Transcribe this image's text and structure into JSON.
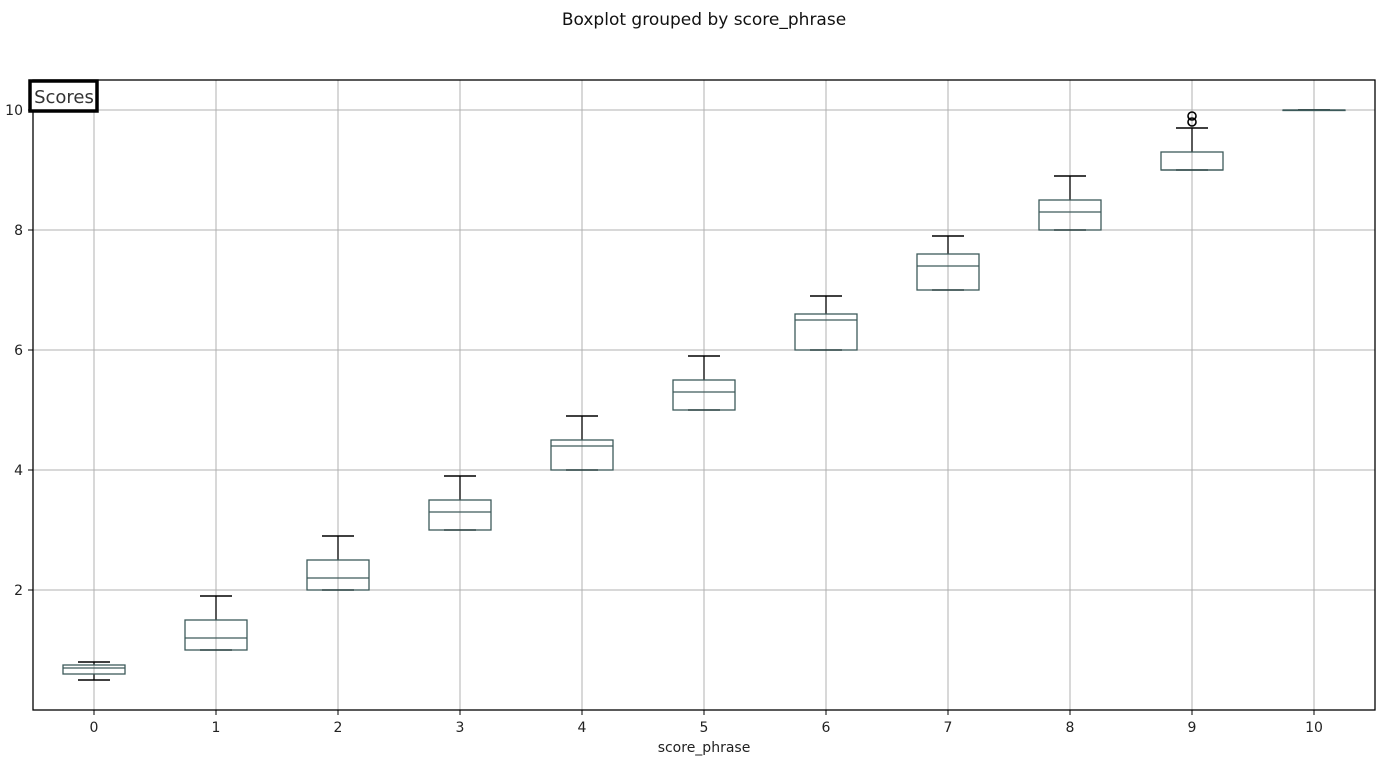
{
  "chart_data": {
    "type": "boxplot",
    "title": "Boxplot grouped by score_phrase",
    "label": "Scores",
    "xlabel": "score_phrase",
    "ylabel": "",
    "categories": [
      "0",
      "1",
      "2",
      "3",
      "4",
      "5",
      "6",
      "7",
      "8",
      "9",
      "10"
    ],
    "boxes": [
      {
        "category": "0",
        "whisker_low": 0.5,
        "q1": 0.6,
        "median": 0.7,
        "q3": 0.75,
        "whisker_high": 0.8,
        "outliers": []
      },
      {
        "category": "1",
        "whisker_low": 1.0,
        "q1": 1.0,
        "median": 1.2,
        "q3": 1.5,
        "whisker_high": 1.9,
        "outliers": []
      },
      {
        "category": "2",
        "whisker_low": 2.0,
        "q1": 2.0,
        "median": 2.2,
        "q3": 2.5,
        "whisker_high": 2.9,
        "outliers": []
      },
      {
        "category": "3",
        "whisker_low": 3.0,
        "q1": 3.0,
        "median": 3.3,
        "q3": 3.5,
        "whisker_high": 3.9,
        "outliers": []
      },
      {
        "category": "4",
        "whisker_low": 4.0,
        "q1": 4.0,
        "median": 4.4,
        "q3": 4.5,
        "whisker_high": 4.9,
        "outliers": []
      },
      {
        "category": "5",
        "whisker_low": 5.0,
        "q1": 5.0,
        "median": 5.3,
        "q3": 5.5,
        "whisker_high": 5.9,
        "outliers": []
      },
      {
        "category": "6",
        "whisker_low": 6.0,
        "q1": 6.0,
        "median": 6.5,
        "q3": 6.6,
        "whisker_high": 6.9,
        "outliers": []
      },
      {
        "category": "7",
        "whisker_low": 7.0,
        "q1": 7.0,
        "median": 7.4,
        "q3": 7.6,
        "whisker_high": 7.9,
        "outliers": []
      },
      {
        "category": "8",
        "whisker_low": 8.0,
        "q1": 8.0,
        "median": 8.3,
        "q3": 8.5,
        "whisker_high": 8.9,
        "outliers": []
      },
      {
        "category": "9",
        "whisker_low": 9.0,
        "q1": 9.0,
        "median": 9.0,
        "q3": 9.3,
        "whisker_high": 9.7,
        "outliers": [
          9.8,
          9.9
        ]
      },
      {
        "category": "10",
        "whisker_low": 10.0,
        "q1": 10.0,
        "median": 10.0,
        "q3": 10.0,
        "whisker_high": 10.0,
        "outliers": []
      }
    ],
    "yticks": [
      2,
      4,
      6,
      8,
      10
    ],
    "ylim": [
      0.0,
      10.5
    ],
    "grid": true,
    "colors": {
      "box": "#3d5a5a",
      "whisker": "#000000",
      "grid": "#b0b0b0"
    }
  }
}
